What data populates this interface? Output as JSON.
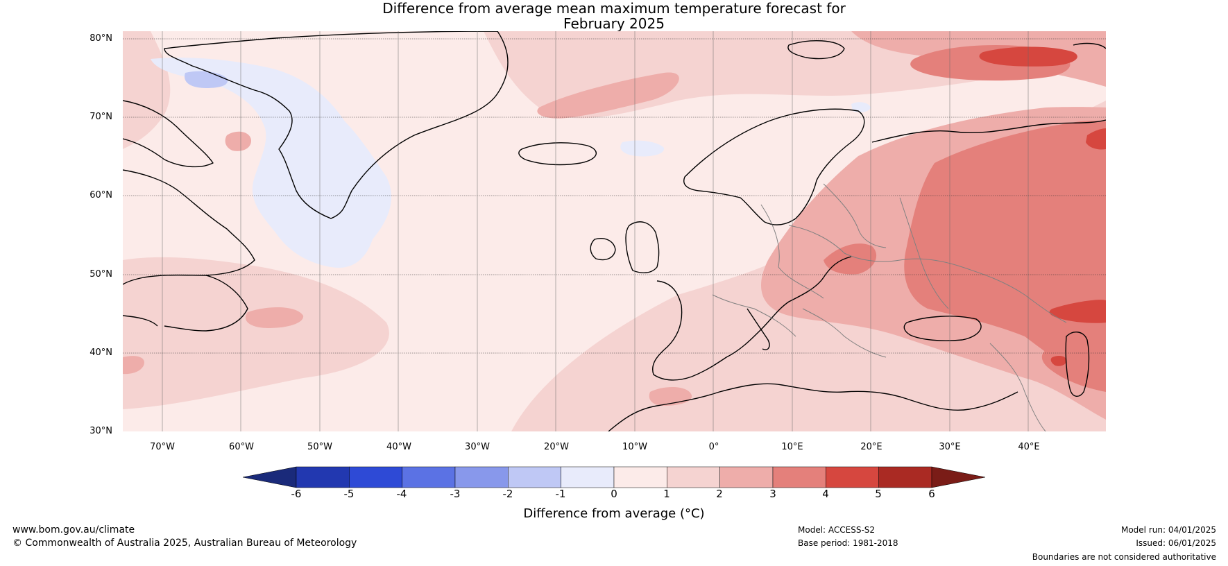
{
  "title": {
    "line1": "Difference from average mean maximum temperature forecast for",
    "line2": "February 2025"
  },
  "map": {
    "lon_range": [
      -75,
      50
    ],
    "lat_range": [
      30,
      81
    ],
    "lat_ticks": [
      "80°N",
      "70°N",
      "60°N",
      "50°N",
      "40°N",
      "30°N"
    ],
    "lon_ticks": [
      "70°W",
      "60°W",
      "50°W",
      "40°W",
      "30°W",
      "20°W",
      "10°W",
      "0°",
      "10°E",
      "20°E",
      "30°E",
      "40°E"
    ],
    "gridlines": true,
    "coastline_color": "#000000",
    "border_color": "#808080"
  },
  "colorbar": {
    "label": "Difference from average (°C)",
    "tick_labels": [
      "-6",
      "-5",
      "-4",
      "-3",
      "-2",
      "-1",
      "0",
      "1",
      "2",
      "3",
      "4",
      "5",
      "6"
    ],
    "under_color": "#1a2a7a",
    "over_color": "#7a1c17",
    "colors": [
      "#2238b0",
      "#2e4ad6",
      "#5b72e4",
      "#8898eb",
      "#bfc8f5",
      "#e8ebfb",
      "#fcebe9",
      "#f5d3d1",
      "#eeadaa",
      "#e4807b",
      "#d6473f",
      "#aa2a23"
    ]
  },
  "footer": {
    "website": "www.bom.gov.au/climate",
    "copyright": "© Commonwealth of Australia 2025, Australian Bureau of Meteorology",
    "model": "Model: ACCESS-S2",
    "base_period": "Base period: 1981-2018",
    "model_run": "Model run: 04/01/2025",
    "issued": "Issued: 06/01/2025",
    "disclaimer": "Boundaries are not considered authoritative"
  }
}
